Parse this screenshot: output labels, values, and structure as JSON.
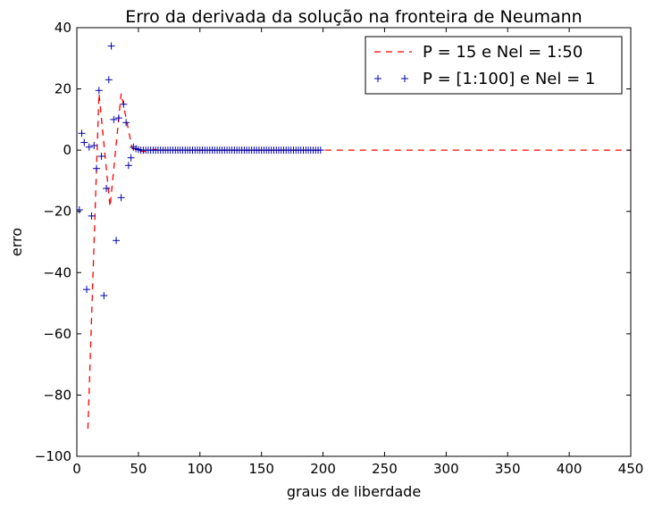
{
  "chart_data": {
    "type": "line",
    "title": "Erro da derivada da solução na fronteira de Neumann",
    "xlabel": "graus de liberdade",
    "ylabel": "erro",
    "xlim": [
      0,
      450
    ],
    "ylim": [
      -100,
      40
    ],
    "xticks": [
      0,
      50,
      100,
      150,
      200,
      250,
      300,
      350,
      400,
      450
    ],
    "yticks": [
      -100,
      -80,
      -60,
      -40,
      -20,
      0,
      20,
      40
    ],
    "grid": false,
    "legend_position": "top-right",
    "series": [
      {
        "name": "P = 15 e Nel = 1:50",
        "style": "dashed-line",
        "color": "#ff0000",
        "x": [
          9,
          18,
          27,
          36,
          45,
          54,
          63,
          72,
          81,
          90,
          100,
          150,
          200,
          250,
          300,
          350,
          400,
          450
        ],
        "y": [
          -91,
          18.5,
          -18.5,
          18.5,
          0.5,
          -0.5,
          0.2,
          0,
          0,
          0,
          0,
          0,
          0,
          0,
          0,
          0,
          0,
          0
        ]
      },
      {
        "name": "P = [1:100] e Nel = 1",
        "style": "plus-markers",
        "color": "#0000aa",
        "x": [
          2,
          4,
          6,
          8,
          10,
          12,
          14,
          16,
          18,
          20,
          22,
          24,
          26,
          28,
          30,
          32,
          34,
          36,
          38,
          40,
          42,
          44,
          46,
          48,
          50
        ],
        "y": [
          -19.5,
          5.5,
          2.5,
          -45.5,
          1,
          -21.5,
          1.5,
          -6,
          19.5,
          -2,
          -47.5,
          -12.5,
          23,
          34,
          10,
          -29.5,
          10.5,
          -15.5,
          15,
          9,
          -5,
          -2.5,
          1,
          0.5,
          0.2
        ],
        "flat_tail": {
          "x_start": 52,
          "x_end": 198,
          "step": 2,
          "y": 0
        }
      }
    ]
  }
}
